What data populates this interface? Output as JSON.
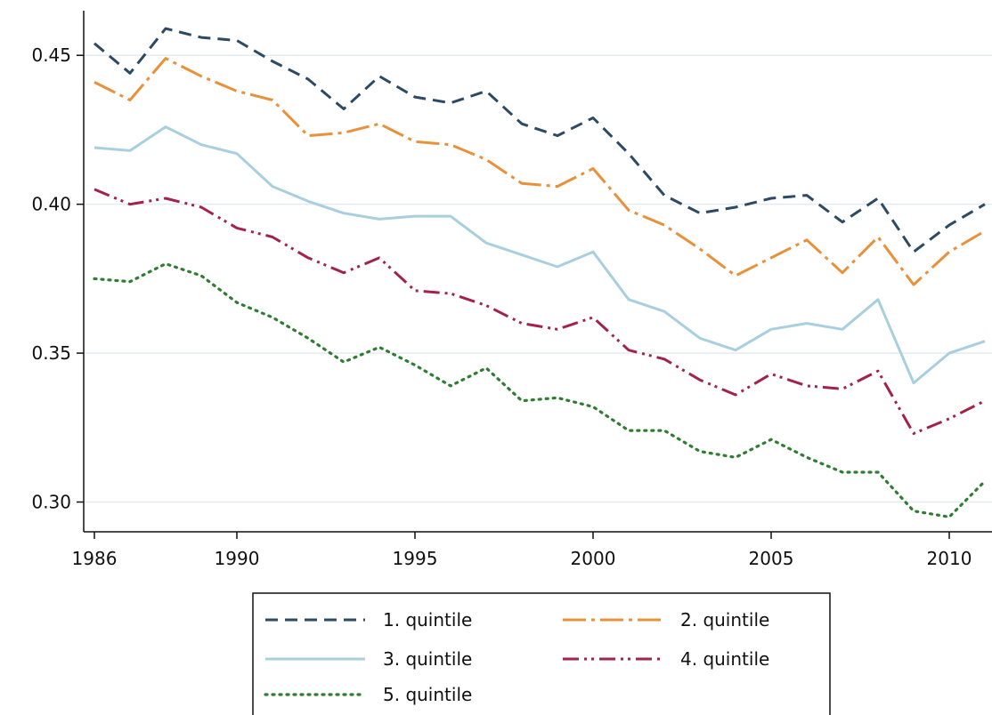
{
  "chart_data": {
    "type": "line",
    "title": "",
    "xlabel": "",
    "ylabel": "",
    "xlim": [
      1985.7,
      2011.2
    ],
    "ylim": [
      0.29,
      0.465
    ],
    "grid": "horizontal",
    "legend_position": "bottom",
    "x_ticks": [
      1986,
      1990,
      1995,
      2000,
      2005,
      2010
    ],
    "x_tick_labels": [
      "1986",
      "1990",
      "1995",
      "2000",
      "2005",
      "2010"
    ],
    "y_ticks": [
      0.3,
      0.35,
      0.4,
      0.45
    ],
    "y_tick_labels": [
      "0.30",
      "0.35",
      "0.40",
      "0.45"
    ],
    "x": [
      1986,
      1987,
      1988,
      1989,
      1990,
      1991,
      1992,
      1993,
      1994,
      1995,
      1996,
      1997,
      1998,
      1999,
      2000,
      2001,
      2002,
      2003,
      2004,
      2005,
      2006,
      2007,
      2008,
      2009,
      2010,
      2011
    ],
    "series": [
      {
        "name": "1. quintile",
        "color": "#2c4a63",
        "dash": "14 8",
        "values": [
          0.454,
          0.444,
          0.459,
          0.456,
          0.455,
          0.448,
          0.442,
          0.432,
          0.443,
          0.436,
          0.434,
          0.438,
          0.427,
          0.423,
          0.429,
          0.417,
          0.403,
          0.397,
          0.399,
          0.402,
          0.403,
          0.394,
          0.402,
          0.384,
          0.393,
          0.4
        ]
      },
      {
        "name": "2. quintile",
        "color": "#e8913a",
        "dash": "26 6 4 6",
        "values": [
          0.441,
          0.435,
          0.449,
          0.443,
          0.438,
          0.435,
          0.423,
          0.424,
          0.427,
          0.421,
          0.42,
          0.415,
          0.407,
          0.406,
          0.412,
          0.398,
          0.393,
          0.385,
          0.376,
          0.382,
          0.388,
          0.377,
          0.389,
          0.373,
          0.384,
          0.391
        ]
      },
      {
        "name": "3. quintile",
        "color": "#a9cfdf",
        "dash": "",
        "values": [
          0.419,
          0.418,
          0.426,
          0.42,
          0.417,
          0.406,
          0.401,
          0.397,
          0.395,
          0.396,
          0.396,
          0.387,
          0.383,
          0.379,
          0.384,
          0.368,
          0.364,
          0.355,
          0.351,
          0.358,
          0.36,
          0.358,
          0.368,
          0.34,
          0.35,
          0.354
        ]
      },
      {
        "name": "4. quintile",
        "color": "#a3224a",
        "dash": "18 6 3 5 3 6",
        "values": [
          0.405,
          0.4,
          0.402,
          0.399,
          0.392,
          0.389,
          0.382,
          0.377,
          0.382,
          0.371,
          0.37,
          0.366,
          0.36,
          0.358,
          0.362,
          0.351,
          0.348,
          0.341,
          0.336,
          0.343,
          0.339,
          0.338,
          0.344,
          0.323,
          0.328,
          0.334
        ]
      },
      {
        "name": "5. quintile",
        "color": "#2e7d32",
        "dash": "2 6",
        "values": [
          0.375,
          0.374,
          0.38,
          0.376,
          0.367,
          0.362,
          0.355,
          0.347,
          0.352,
          0.346,
          0.339,
          0.345,
          0.334,
          0.335,
          0.332,
          0.324,
          0.324,
          0.317,
          0.315,
          0.321,
          0.315,
          0.31,
          0.31,
          0.297,
          0.295,
          0.307
        ]
      }
    ]
  }
}
